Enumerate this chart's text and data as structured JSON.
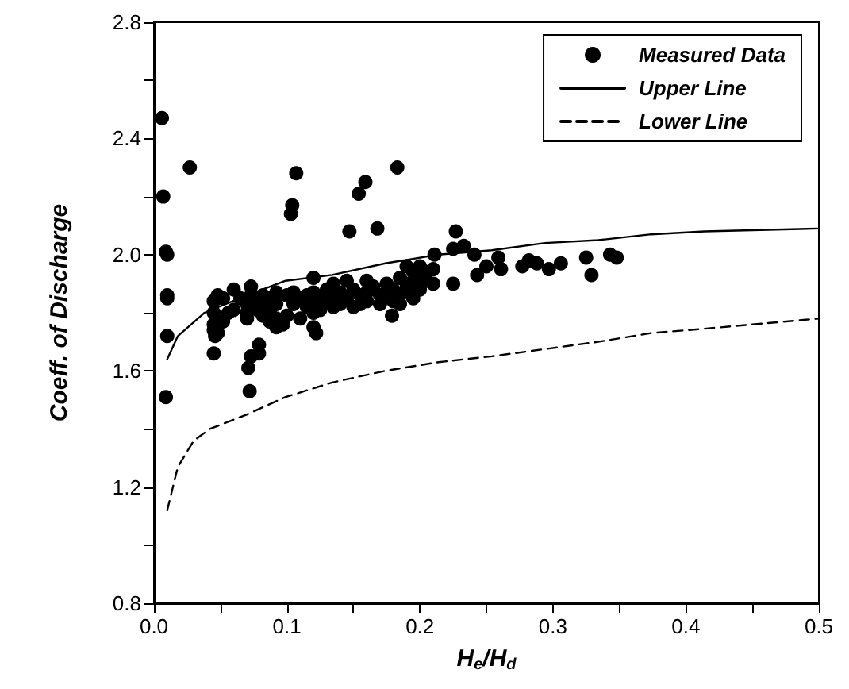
{
  "chart_data": {
    "type": "scatter",
    "xlabel": "H$_{e}$/H$_{d}$",
    "ylabel": "Coeff. of Discharge",
    "xlim": [
      0,
      0.5
    ],
    "ylim": [
      0.8,
      2.8
    ],
    "xticks": [
      {
        "value": 0,
        "label": "0.0"
      },
      {
        "value": 0.05,
        "label": null
      },
      0.1,
      {
        "value": 0.15,
        "label": null
      },
      0.2,
      {
        "value": 0.25,
        "label": null
      },
      0.3,
      {
        "value": 0.35,
        "label": null
      },
      0.4,
      {
        "value": 0.45,
        "label": null
      },
      0.5
    ],
    "yticks": [
      0.8,
      {
        "value": 1.0,
        "label": null
      },
      1.2,
      {
        "value": 1.4,
        "label": null
      },
      1.6,
      {
        "value": 1.8,
        "label": null
      },
      {
        "value": 2.0,
        "label": "2.0"
      },
      {
        "value": 2.2,
        "label": null
      },
      2.4,
      {
        "value": 2.6,
        "label": null
      },
      2.8
    ],
    "grid": false,
    "legend": "top right",
    "series": [
      {
        "name": "Measured Data",
        "marker": "circle",
        "color": "#000000",
        "x": [
          0.006,
          0.007,
          0.009,
          0.01,
          0.01,
          0.01,
          0.01,
          0.009,
          0.027,
          0.103,
          0.104,
          0.107,
          0.147,
          0.154,
          0.159,
          0.168,
          0.183,
          0.227,
          0.225,
          0.233,
          0.241,
          0.243,
          0.25,
          0.259,
          0.261,
          0.277,
          0.282,
          0.288,
          0.297,
          0.306,
          0.325,
          0.329,
          0.343,
          0.348,
          0.225,
          0.211,
          0.045,
          0.071,
          0.072,
          0.073,
          0.079,
          0.079,
          0.12,
          0.122,
          0.179,
          0.195,
          0.046,
          0.045,
          0.045,
          0.045,
          0.045,
          0.048,
          0.048,
          0.052,
          0.052,
          0.056,
          0.06,
          0.06,
          0.065,
          0.07,
          0.07,
          0.07,
          0.073,
          0.073,
          0.078,
          0.078,
          0.082,
          0.082,
          0.082,
          0.087,
          0.087,
          0.087,
          0.092,
          0.092,
          0.092,
          0.092,
          0.097,
          0.1,
          0.1,
          0.105,
          0.105,
          0.11,
          0.11,
          0.115,
          0.115,
          0.12,
          0.12,
          0.12,
          0.12,
          0.125,
          0.125,
          0.13,
          0.13,
          0.135,
          0.135,
          0.135,
          0.14,
          0.14,
          0.145,
          0.145,
          0.15,
          0.15,
          0.155,
          0.155,
          0.16,
          0.16,
          0.16,
          0.165,
          0.17,
          0.17,
          0.175,
          0.175,
          0.18,
          0.18,
          0.185,
          0.185,
          0.185,
          0.19,
          0.19,
          0.19,
          0.195,
          0.195,
          0.2,
          0.2,
          0.2,
          0.205,
          0.205,
          0.21,
          0.21
        ],
        "values": [
          2.47,
          2.2,
          2.01,
          2.0,
          1.86,
          1.85,
          1.72,
          1.51,
          2.3,
          2.14,
          2.17,
          2.28,
          2.08,
          2.21,
          2.25,
          2.09,
          2.3,
          2.08,
          2.02,
          2.03,
          2.0,
          1.93,
          1.96,
          1.99,
          1.95,
          1.96,
          1.98,
          1.97,
          1.95,
          1.97,
          1.99,
          1.93,
          2.0,
          1.99,
          1.9,
          2.0,
          1.66,
          1.61,
          1.53,
          1.65,
          1.69,
          1.66,
          1.75,
          1.73,
          1.79,
          1.85,
          1.72,
          1.84,
          1.8,
          1.76,
          1.74,
          1.86,
          1.73,
          1.85,
          1.77,
          1.8,
          1.88,
          1.81,
          1.85,
          1.83,
          1.8,
          1.78,
          1.89,
          1.86,
          1.84,
          1.81,
          1.86,
          1.82,
          1.79,
          1.85,
          1.8,
          1.77,
          1.87,
          1.83,
          1.78,
          1.75,
          1.76,
          1.86,
          1.79,
          1.87,
          1.83,
          1.85,
          1.78,
          1.86,
          1.82,
          1.92,
          1.87,
          1.83,
          1.8,
          1.85,
          1.81,
          1.88,
          1.84,
          1.9,
          1.86,
          1.82,
          1.87,
          1.83,
          1.91,
          1.85,
          1.88,
          1.82,
          1.86,
          1.83,
          1.91,
          1.87,
          1.84,
          1.89,
          1.86,
          1.83,
          1.9,
          1.87,
          1.88,
          1.84,
          1.92,
          1.86,
          1.83,
          1.96,
          1.9,
          1.88,
          1.94,
          1.9,
          1.96,
          1.92,
          1.88,
          1.94,
          1.91,
          1.95,
          1.9
        ]
      },
      {
        "name": "Upper Line",
        "type": "line",
        "line_style": "solid",
        "color": "#000000",
        "x": [
          0.01,
          0.018,
          0.038,
          0.07,
          0.099,
          0.134,
          0.174,
          0.214,
          0.254,
          0.294,
          0.334,
          0.374,
          0.414,
          0.5
        ],
        "values": [
          1.64,
          1.72,
          1.8,
          1.86,
          1.91,
          1.93,
          1.97,
          2.0,
          2.015,
          2.04,
          2.05,
          2.07,
          2.08,
          2.09
        ]
      },
      {
        "name": "Lower Line",
        "type": "line",
        "line_style": "dashed",
        "color": "#000000",
        "x": [
          0.01,
          0.018,
          0.03,
          0.042,
          0.07,
          0.099,
          0.134,
          0.174,
          0.214,
          0.254,
          0.294,
          0.334,
          0.374,
          0.414,
          0.5
        ],
        "values": [
          1.12,
          1.27,
          1.36,
          1.4,
          1.45,
          1.51,
          1.56,
          1.6,
          1.63,
          1.65,
          1.675,
          1.7,
          1.73,
          1.745,
          1.78
        ]
      }
    ]
  }
}
